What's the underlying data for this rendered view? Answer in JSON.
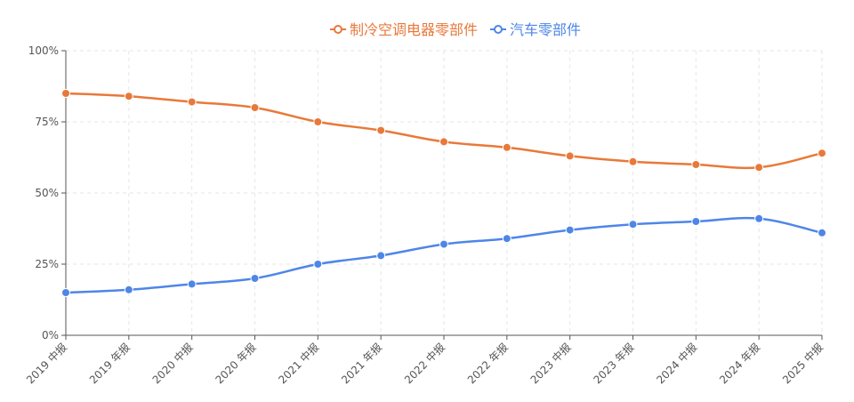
{
  "chart_data": {
    "type": "line",
    "categories": [
      "2019 中报",
      "2019 年报",
      "2020 中报",
      "2020 年报",
      "2021 中报",
      "2021 年报",
      "2022 中报",
      "2022 年报",
      "2023 中报",
      "2023 年报",
      "2024 中报",
      "2024 年报",
      "2025 中报"
    ],
    "series": [
      {
        "name": "制冷空调电器零部件",
        "color": "#E8793A",
        "values": [
          85,
          84,
          82,
          80,
          75,
          72,
          68,
          66,
          63,
          61,
          60,
          59,
          64
        ]
      },
      {
        "name": "汽车零部件",
        "color": "#4E86E8",
        "values": [
          15,
          16,
          18,
          20,
          25,
          28,
          32,
          34,
          37,
          39,
          40,
          41,
          36
        ]
      }
    ],
    "yticks": [
      "0%",
      "25%",
      "50%",
      "75%",
      "100%"
    ],
    "ylim": [
      0,
      100
    ],
    "legend_position": "top-center",
    "grid": true
  }
}
